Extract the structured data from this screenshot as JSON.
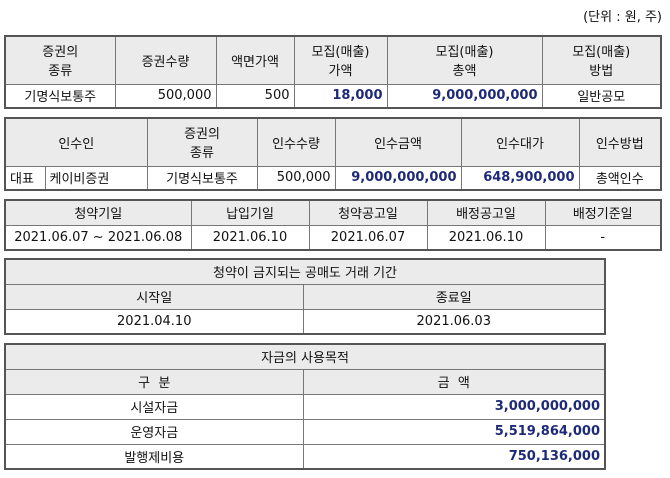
{
  "unit_note": "(단위 : 원, 주)",
  "table1": {
    "headers": [
      "증권의\n종류",
      "증권수량",
      "액면가액",
      "모집(매출)\n가액",
      "모집(매출)\n총액",
      "모집(매출)\n방법"
    ],
    "header_lines": [
      [
        "증권의",
        "종류"
      ],
      [
        "증권수량"
      ],
      [
        "액면가액"
      ],
      [
        "모집(매출)",
        "가액"
      ],
      [
        "모집(매출)",
        "총액"
      ],
      [
        "모집(매출)",
        "방법"
      ]
    ],
    "row": [
      "기명식보통주",
      "500,000",
      "500",
      "18,000",
      "9,000,000,000",
      "일반공모"
    ]
  },
  "table2": {
    "header_lines": [
      [
        "인수인"
      ],
      [
        "증권의",
        "종류"
      ],
      [
        "인수수량"
      ],
      [
        "인수금액"
      ],
      [
        "인수대가"
      ],
      [
        "인수방법"
      ]
    ],
    "row": [
      "대표",
      "케이비증권",
      "기명식보통주",
      "500,000",
      "9,000,000,000",
      "648,900,000",
      "총액인수"
    ]
  },
  "table3": {
    "headers": [
      "청약기일",
      "납입기일",
      "청약공고일",
      "배정공고일",
      "배정기준일"
    ],
    "row": [
      "2021.06.07 ~ 2021.06.08",
      "2021.06.10",
      "2021.06.07",
      "2021.06.10",
      "-"
    ]
  },
  "table4": {
    "title": "청약이 금지되는 공매도 거래 기간",
    "headers": [
      "시작일",
      "종료일"
    ],
    "row": [
      "2021.04.10",
      "2021.06.03"
    ]
  },
  "table5": {
    "title": "자금의 사용목적",
    "headers": [
      "구  분",
      "금  액"
    ],
    "rows": [
      [
        "시설자금",
        "3,000,000,000"
      ],
      [
        "운영자금",
        "5,519,864,000"
      ],
      [
        "발행제비용",
        "750,136,000"
      ]
    ]
  }
}
